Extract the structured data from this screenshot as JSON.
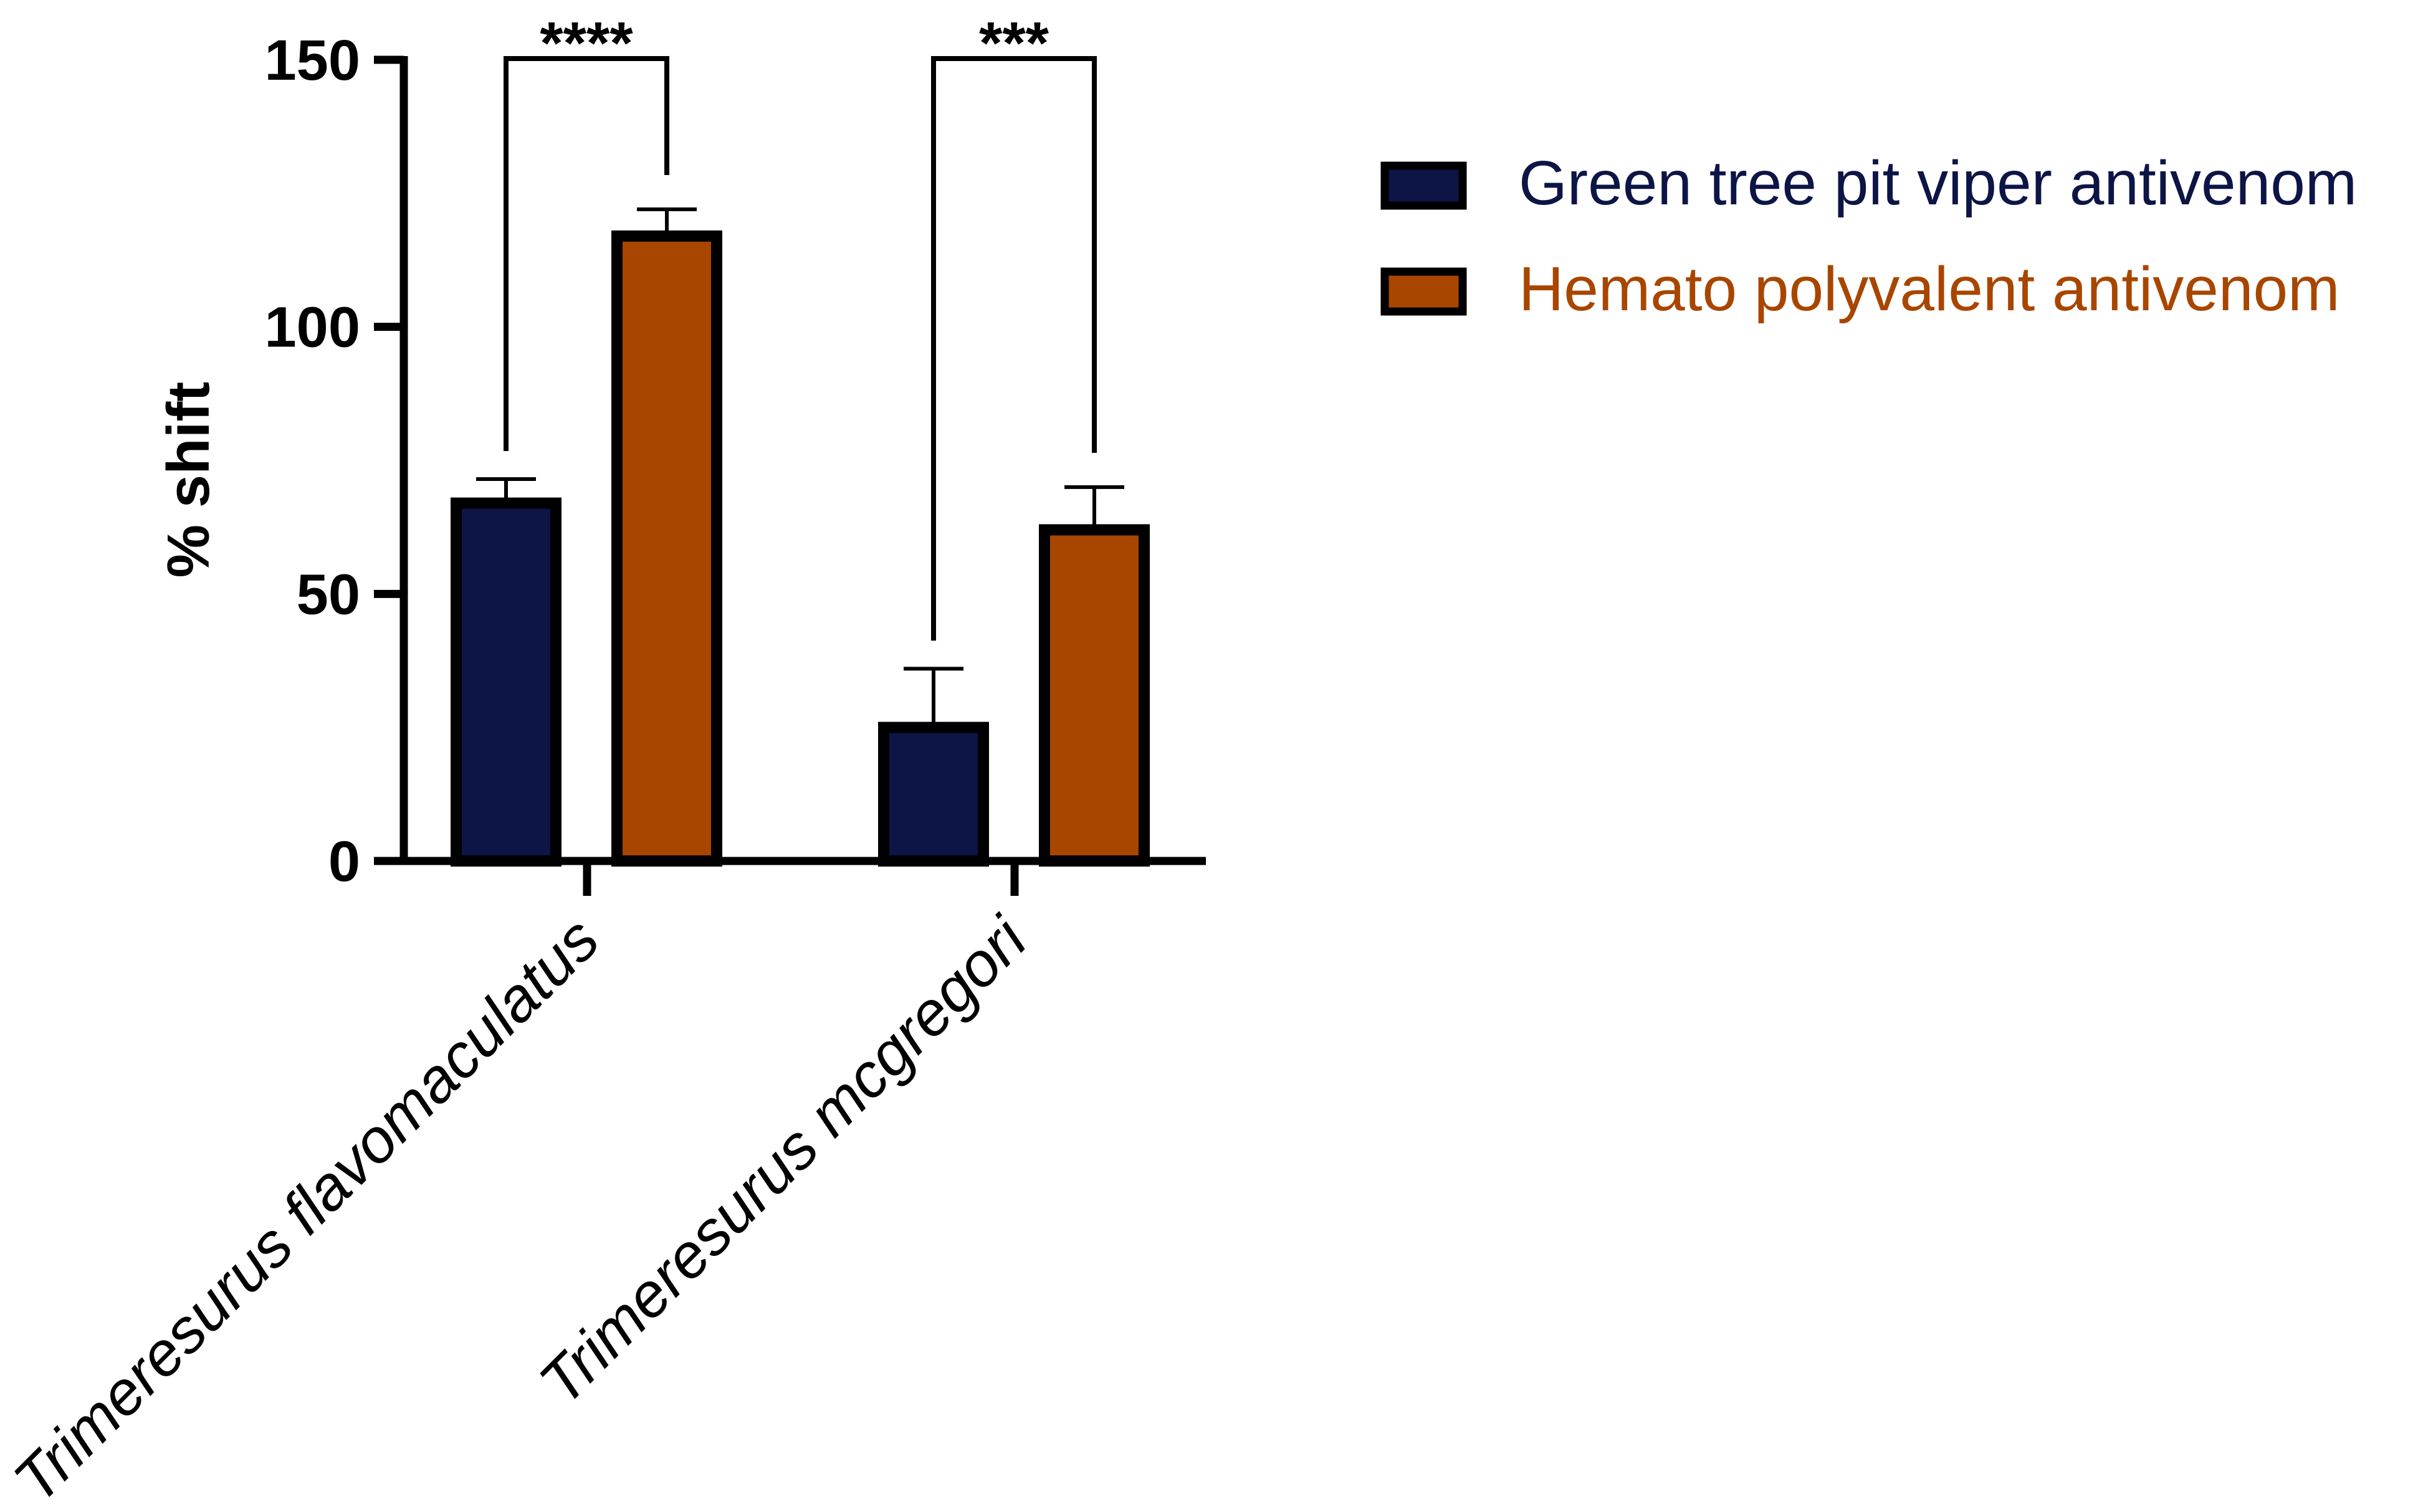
{
  "chart_data": {
    "type": "bar",
    "title": "",
    "xlabel": "",
    "ylabel": "% shift",
    "ylim": [
      0,
      150
    ],
    "yticks": [
      0,
      50,
      100,
      150
    ],
    "categories": [
      "Trimeresurus flavomaculatus",
      "Trimeresurus mcgregori"
    ],
    "series": [
      {
        "name": "Green tree pit viper antivenom",
        "color": "#0d1446",
        "values": [
          67,
          25
        ],
        "errors": [
          4.5,
          11
        ]
      },
      {
        "name": "Hemato polyvalent antivenom",
        "color": "#a84600",
        "values": [
          117,
          62
        ],
        "errors": [
          5,
          8
        ]
      }
    ],
    "significance": [
      {
        "category": "Trimeresurus flavomaculatus",
        "label": "****"
      },
      {
        "category": "Trimeresurus mcgregori",
        "label": "***"
      }
    ],
    "legend": {
      "position": "top-right"
    },
    "grid": false
  }
}
